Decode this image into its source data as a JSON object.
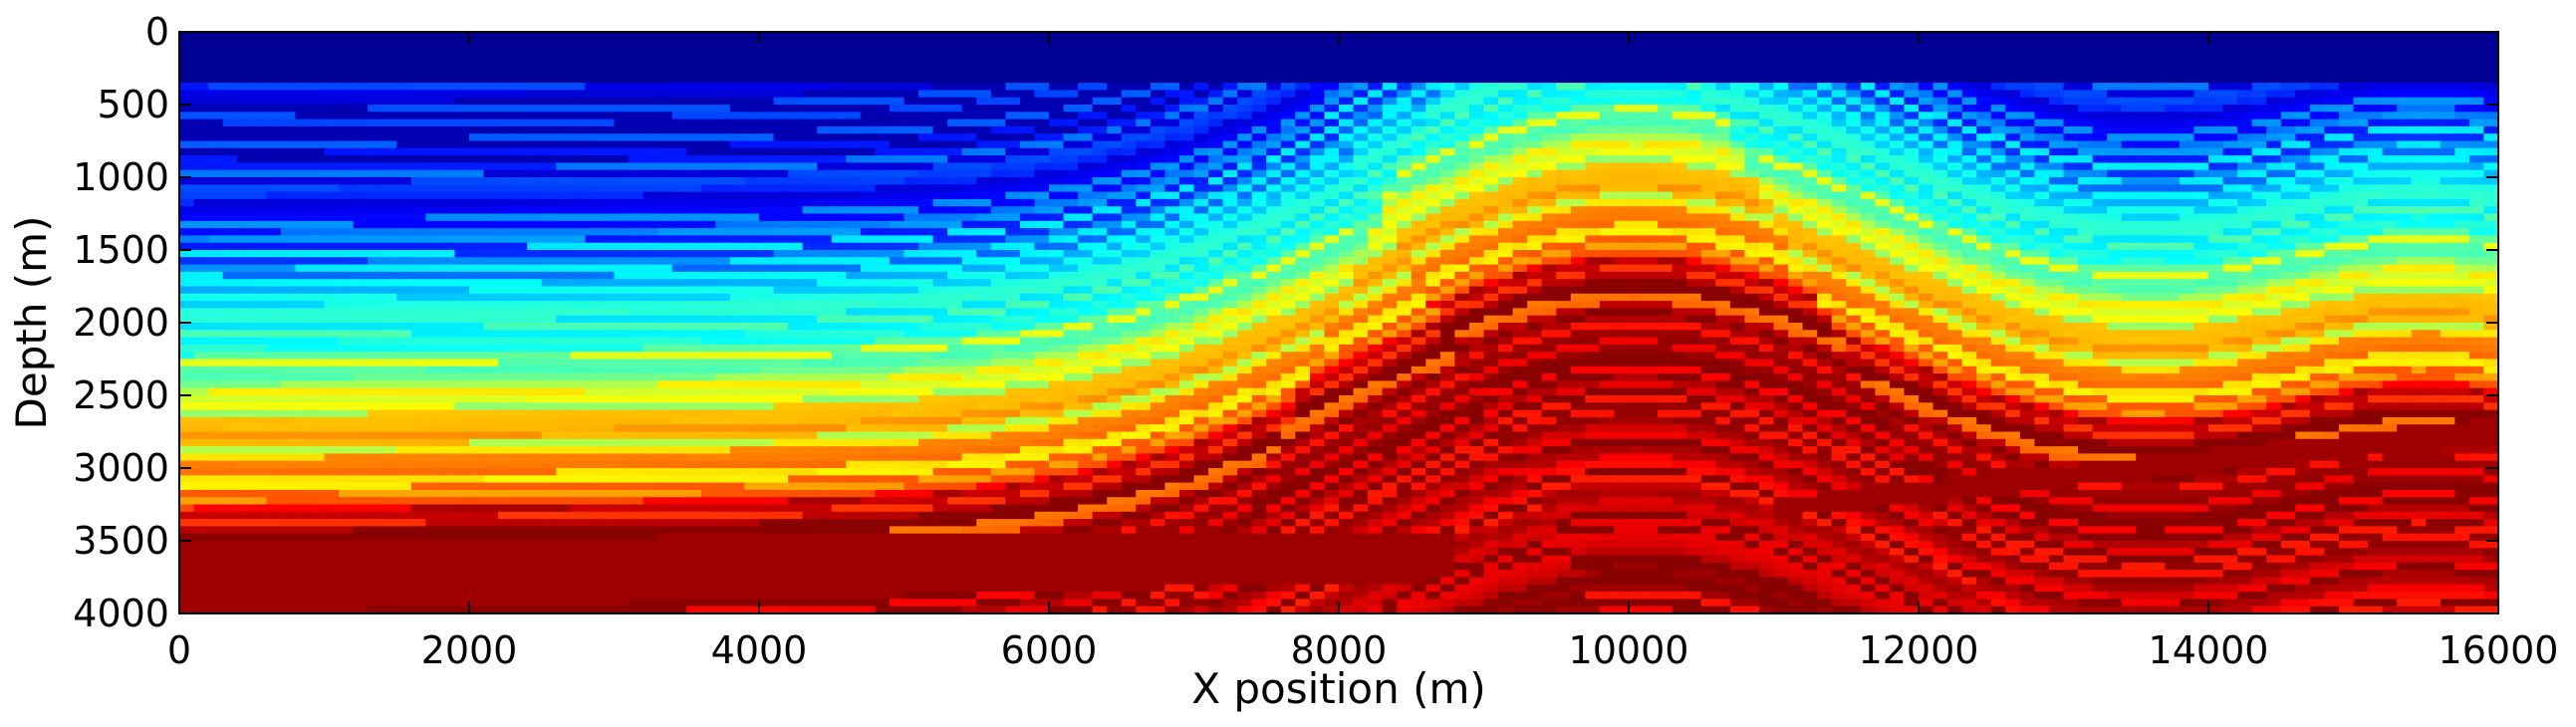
{
  "chart_data": {
    "type": "heatmap",
    "title": "",
    "xlabel": "X position (m)",
    "ylabel": "Depth (m)",
    "xlim": [
      0,
      16000
    ],
    "ylim": [
      4000,
      0
    ],
    "y_inverted": true,
    "colormap": "jet",
    "grid": false,
    "x_ticks": [
      0,
      2000,
      4000,
      6000,
      8000,
      10000,
      12000,
      14000,
      16000
    ],
    "x_tick_labels": [
      "0",
      "2000",
      "4000",
      "6000",
      "8000",
      "10000",
      "12000",
      "14000",
      "16000"
    ],
    "y_ticks": [
      0,
      500,
      1000,
      1500,
      2000,
      2500,
      3000,
      3500,
      4000
    ],
    "y_tick_labels": [
      "0",
      "500",
      "1000",
      "1500",
      "2000",
      "2500",
      "3000",
      "3500",
      "4000"
    ],
    "water_layer_depth": 330,
    "features": {
      "anticline_crest_x": 10000,
      "thrust_fault_band_depth_range": [
        3450,
        4000
      ],
      "normal_fault_x_positions": [
        7800,
        8700,
        10500
      ]
    }
  },
  "colors": {
    "jet": [
      "#00007f",
      "#0000ff",
      "#007fff",
      "#00ffff",
      "#7fff7f",
      "#ffff00",
      "#ff7f00",
      "#ff0000",
      "#7f0000"
    ]
  }
}
